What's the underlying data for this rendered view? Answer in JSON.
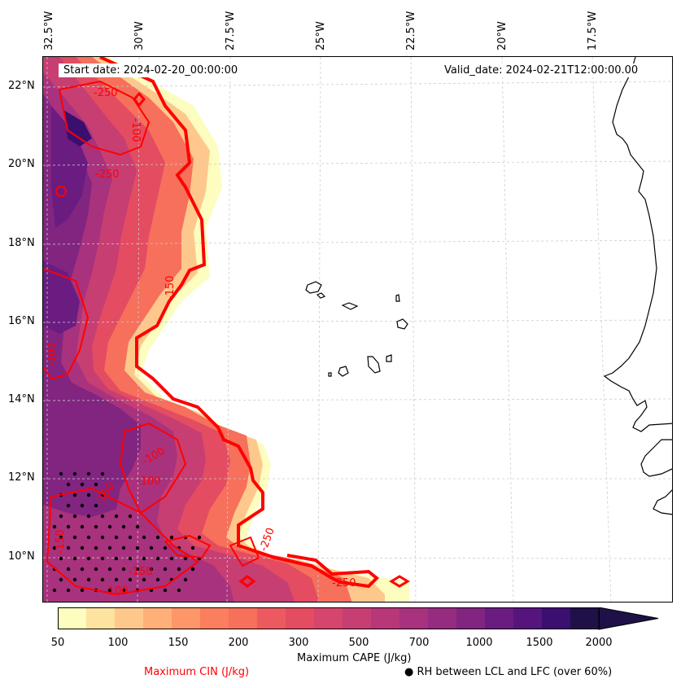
{
  "map": {
    "start_date": "Start date: 2024-02-20_00:00:00",
    "valid_date": "Valid_date: 2024-02-21T12:00:00.00",
    "longitude_labels": [
      "32.5°W",
      "30°W",
      "27.5°W",
      "25°W",
      "22.5°W",
      "20°W",
      "17.5°W"
    ],
    "latitude_labels": [
      "22°N",
      "20°N",
      "18°N",
      "16°N",
      "14°N",
      "12°N",
      "10°N"
    ],
    "cin_contour_labels": [
      "-250",
      "-250",
      "-100",
      "-150",
      "-100",
      "-100",
      "-150",
      "-150",
      "-100",
      "-250",
      "-250",
      "-150",
      "-100"
    ],
    "colors": {
      "cin_contour": "#ff0000",
      "coastline": "#000000",
      "gridline": "#cccccc",
      "stipple": "#000000"
    }
  },
  "colorbar": {
    "label": "Maximum CAPE (J/kg)",
    "tick_labels": [
      "50",
      "100",
      "150",
      "200",
      "300",
      "500",
      "700",
      "1000",
      "1500",
      "2000"
    ],
    "levels": [
      50,
      75,
      100,
      125,
      150,
      175,
      200,
      250,
      300,
      400,
      500,
      600,
      700,
      850,
      1000,
      1250,
      1500,
      1750,
      2000
    ],
    "colors": [
      "#fcfdbf",
      "#fde2a0",
      "#fec88c",
      "#feb078",
      "#fd9668",
      "#fb7e5e",
      "#f6705c",
      "#ec5a60",
      "#e44c62",
      "#d6456c",
      "#c73e73",
      "#b73779",
      "#a8327d",
      "#952c80",
      "#812581",
      "#6a1c81",
      "#56157c",
      "#3b0f70",
      "#1f1147"
    ],
    "extend": "max"
  },
  "legend": {
    "cin_label": "Maximum CIN (J/kg)",
    "rh_label": "RH between LCL and LFC (over 60%)",
    "rh_marker": "●"
  }
}
